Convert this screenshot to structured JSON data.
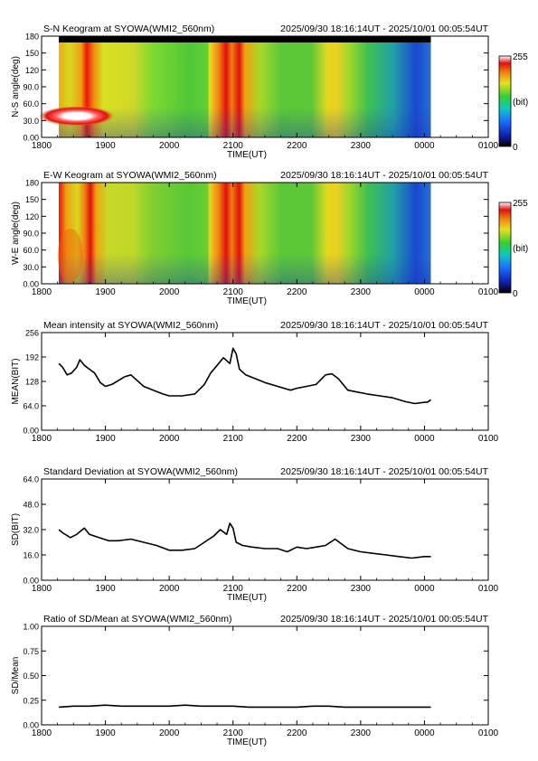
{
  "chart_data": [
    {
      "type": "heatmap",
      "title": "S-N Keogram at SYOWA(WMI2_560nm)",
      "time_range": "2025/09/30 18:16:14UT - 2025/10/01 00:05:54UT",
      "xlabel": "TIME(UT)",
      "ylabel": "N-S angle(deg)",
      "x_ticks": [
        "1800",
        "1900",
        "2000",
        "2100",
        "2200",
        "2300",
        "0000",
        "0100"
      ],
      "y_ticks": [
        "0.00",
        "30.0",
        "60.0",
        "90.0",
        "120",
        "150",
        "180"
      ],
      "ylim": [
        0,
        180
      ],
      "colorbar": {
        "max_label": "255",
        "unit_label": "(bit)",
        "min_label": "0"
      },
      "data_extent_hours": [
        18.27,
        24.1
      ]
    },
    {
      "type": "heatmap",
      "title": "E-W Keogram at SYOWA(WMI2_560nm)",
      "time_range": "2025/09/30 18:16:14UT - 2025/10/01 00:05:54UT",
      "xlabel": "TIME(UT)",
      "ylabel": "W-E angle(deg)",
      "x_ticks": [
        "1800",
        "1900",
        "2000",
        "2100",
        "2200",
        "2300",
        "0000",
        "0100"
      ],
      "y_ticks": [
        "0.00",
        "30.0",
        "60.0",
        "90.0",
        "120",
        "150",
        "180"
      ],
      "ylim": [
        0,
        180
      ],
      "colorbar": {
        "max_label": "255",
        "unit_label": "(bit)",
        "min_label": "0"
      },
      "data_extent_hours": [
        18.27,
        24.1
      ]
    },
    {
      "type": "line",
      "title": "Mean intensity at SYOWA(WMI2_560nm)",
      "time_range": "2025/09/30 18:16:14UT - 2025/10/01 00:05:54UT",
      "xlabel": "",
      "ylabel": "MEAN(BIT)",
      "x_ticks": [
        "1800",
        "1900",
        "2000",
        "2100",
        "2200",
        "2300",
        "0000",
        "0100"
      ],
      "y_ticks": [
        "0.00",
        "64.0",
        "128",
        "192",
        "256"
      ],
      "xlim": [
        18,
        25
      ],
      "ylim": [
        0,
        256
      ],
      "x": [
        18.27,
        18.33,
        18.4,
        18.47,
        18.55,
        18.6,
        18.67,
        18.75,
        18.83,
        18.92,
        19.0,
        19.1,
        19.2,
        19.3,
        19.4,
        19.5,
        19.6,
        19.75,
        19.9,
        20.0,
        20.2,
        20.4,
        20.55,
        20.65,
        20.75,
        20.85,
        20.95,
        21.0,
        21.05,
        21.1,
        21.2,
        21.35,
        21.5,
        21.7,
        21.9,
        22.0,
        22.15,
        22.3,
        22.45,
        22.55,
        22.65,
        22.8,
        22.95,
        23.1,
        23.3,
        23.5,
        23.7,
        23.85,
        23.95,
        24.05,
        24.1
      ],
      "y": [
        175,
        165,
        145,
        150,
        165,
        185,
        170,
        160,
        150,
        125,
        115,
        120,
        130,
        140,
        145,
        130,
        115,
        105,
        95,
        90,
        90,
        95,
        120,
        150,
        170,
        190,
        175,
        215,
        200,
        160,
        145,
        135,
        125,
        115,
        105,
        110,
        115,
        120,
        145,
        148,
        135,
        105,
        100,
        95,
        90,
        85,
        75,
        70,
        72,
        74,
        80
      ]
    },
    {
      "type": "line",
      "title": "Standard Deviation at SYOWA(WMI2_560nm)",
      "time_range": "2025/09/30 18:16:14UT - 2025/10/01 00:05:54UT",
      "xlabel": "TIME(UT)",
      "ylabel": "SD(BIT)",
      "x_ticks": [
        "1800",
        "1900",
        "2000",
        "2100",
        "2200",
        "2300",
        "0000",
        "0100"
      ],
      "y_ticks": [
        "0.00",
        "16.0",
        "32.0",
        "48.0",
        "64.0"
      ],
      "xlim": [
        18,
        25
      ],
      "ylim": [
        0,
        64
      ],
      "x": [
        18.27,
        18.33,
        18.45,
        18.55,
        18.67,
        18.75,
        18.9,
        19.05,
        19.2,
        19.4,
        19.6,
        19.8,
        20.0,
        20.2,
        20.4,
        20.55,
        20.7,
        20.8,
        20.9,
        20.95,
        21.0,
        21.05,
        21.15,
        21.3,
        21.5,
        21.7,
        21.85,
        22.0,
        22.15,
        22.3,
        22.45,
        22.6,
        22.8,
        23.0,
        23.2,
        23.4,
        23.6,
        23.8,
        24.0,
        24.1
      ],
      "y": [
        32,
        30,
        27,
        29,
        33,
        29,
        27,
        25,
        25,
        26,
        24,
        22,
        19,
        19,
        20,
        24,
        28,
        32,
        29,
        36,
        33,
        24,
        22,
        21,
        20,
        20,
        18,
        21,
        20,
        21,
        22,
        26,
        20,
        18,
        17,
        16,
        15,
        14,
        15,
        15
      ]
    },
    {
      "type": "line",
      "title": "Ratio of SD/Mean at SYOWA(WMI2_560nm)",
      "time_range": "2025/09/30 18:16:14UT - 2025/10/01 00:05:54UT",
      "xlabel": "TIME(UT)",
      "ylabel": "SD/Mean",
      "x_ticks": [
        "1800",
        "1900",
        "2000",
        "2100",
        "2200",
        "2300",
        "0000",
        "0100"
      ],
      "y_ticks": [
        "0.00",
        "0.25",
        "0.50",
        "0.75",
        "1.00"
      ],
      "xlim": [
        18,
        25
      ],
      "ylim": [
        0,
        1
      ],
      "x": [
        18.27,
        18.5,
        18.75,
        19.0,
        19.25,
        19.5,
        19.75,
        20.0,
        20.25,
        20.5,
        20.75,
        21.0,
        21.25,
        21.5,
        21.75,
        22.0,
        22.25,
        22.5,
        22.75,
        23.0,
        23.25,
        23.5,
        23.75,
        24.0,
        24.1
      ],
      "y": [
        0.18,
        0.19,
        0.19,
        0.2,
        0.19,
        0.19,
        0.19,
        0.19,
        0.2,
        0.19,
        0.19,
        0.19,
        0.18,
        0.18,
        0.18,
        0.18,
        0.19,
        0.19,
        0.18,
        0.18,
        0.18,
        0.18,
        0.18,
        0.18,
        0.18
      ]
    }
  ]
}
